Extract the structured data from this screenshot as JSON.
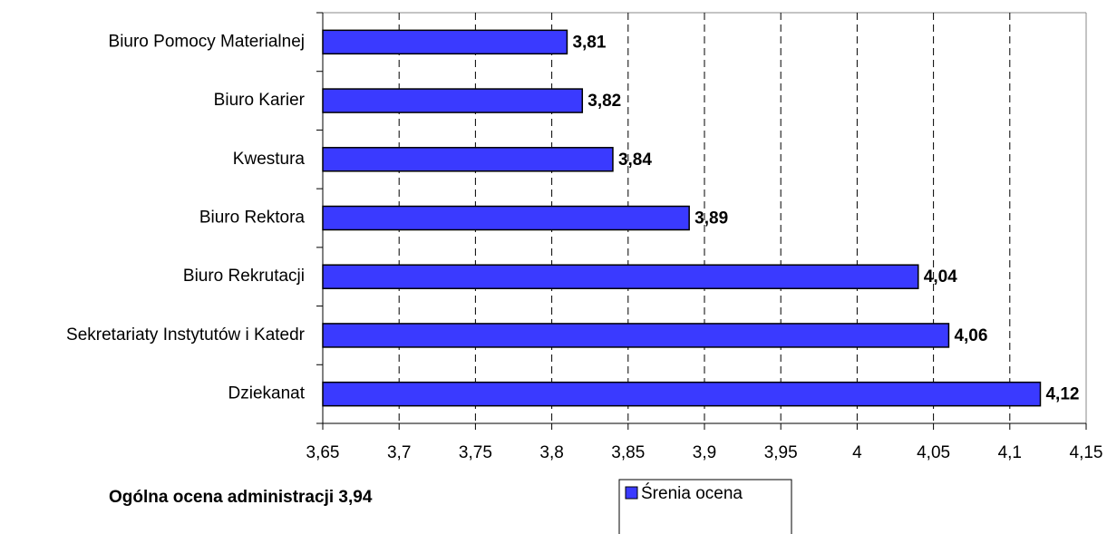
{
  "chart_data": {
    "type": "barh",
    "categories": [
      "Biuro Pomocy Materialnej",
      "Biuro Karier",
      "Kwestura",
      "Biuro Rektora",
      "Biuro Rekrutacji",
      "Sekretariaty Instytutów i Katedr",
      "Dziekanat"
    ],
    "series": [
      {
        "name": "Śrenia ocena",
        "color": "#3a3aff",
        "values": [
          3.81,
          3.82,
          3.84,
          3.89,
          4.04,
          4.06,
          4.12
        ],
        "value_labels": [
          "3,81",
          "3,82",
          "3,84",
          "3,89",
          "4,04",
          "4,06",
          "4,12"
        ]
      }
    ],
    "xlim": [
      3.65,
      4.15
    ],
    "xticks": [
      {
        "value": 3.65,
        "label": "3,65"
      },
      {
        "value": 3.7,
        "label": "3,7"
      },
      {
        "value": 3.75,
        "label": "3,75"
      },
      {
        "value": 3.8,
        "label": "3,8"
      },
      {
        "value": 3.85,
        "label": "3,85"
      },
      {
        "value": 3.9,
        "label": "3,9"
      },
      {
        "value": 3.95,
        "label": "3,95"
      },
      4,
      {
        "value": 4.05,
        "label": "4,05"
      },
      {
        "value": 4.1,
        "label": "4,1"
      },
      {
        "value": 4.15,
        "label": "4,15"
      }
    ],
    "grid": true,
    "annotation": "Ogólna ocena administracji 3,94"
  }
}
